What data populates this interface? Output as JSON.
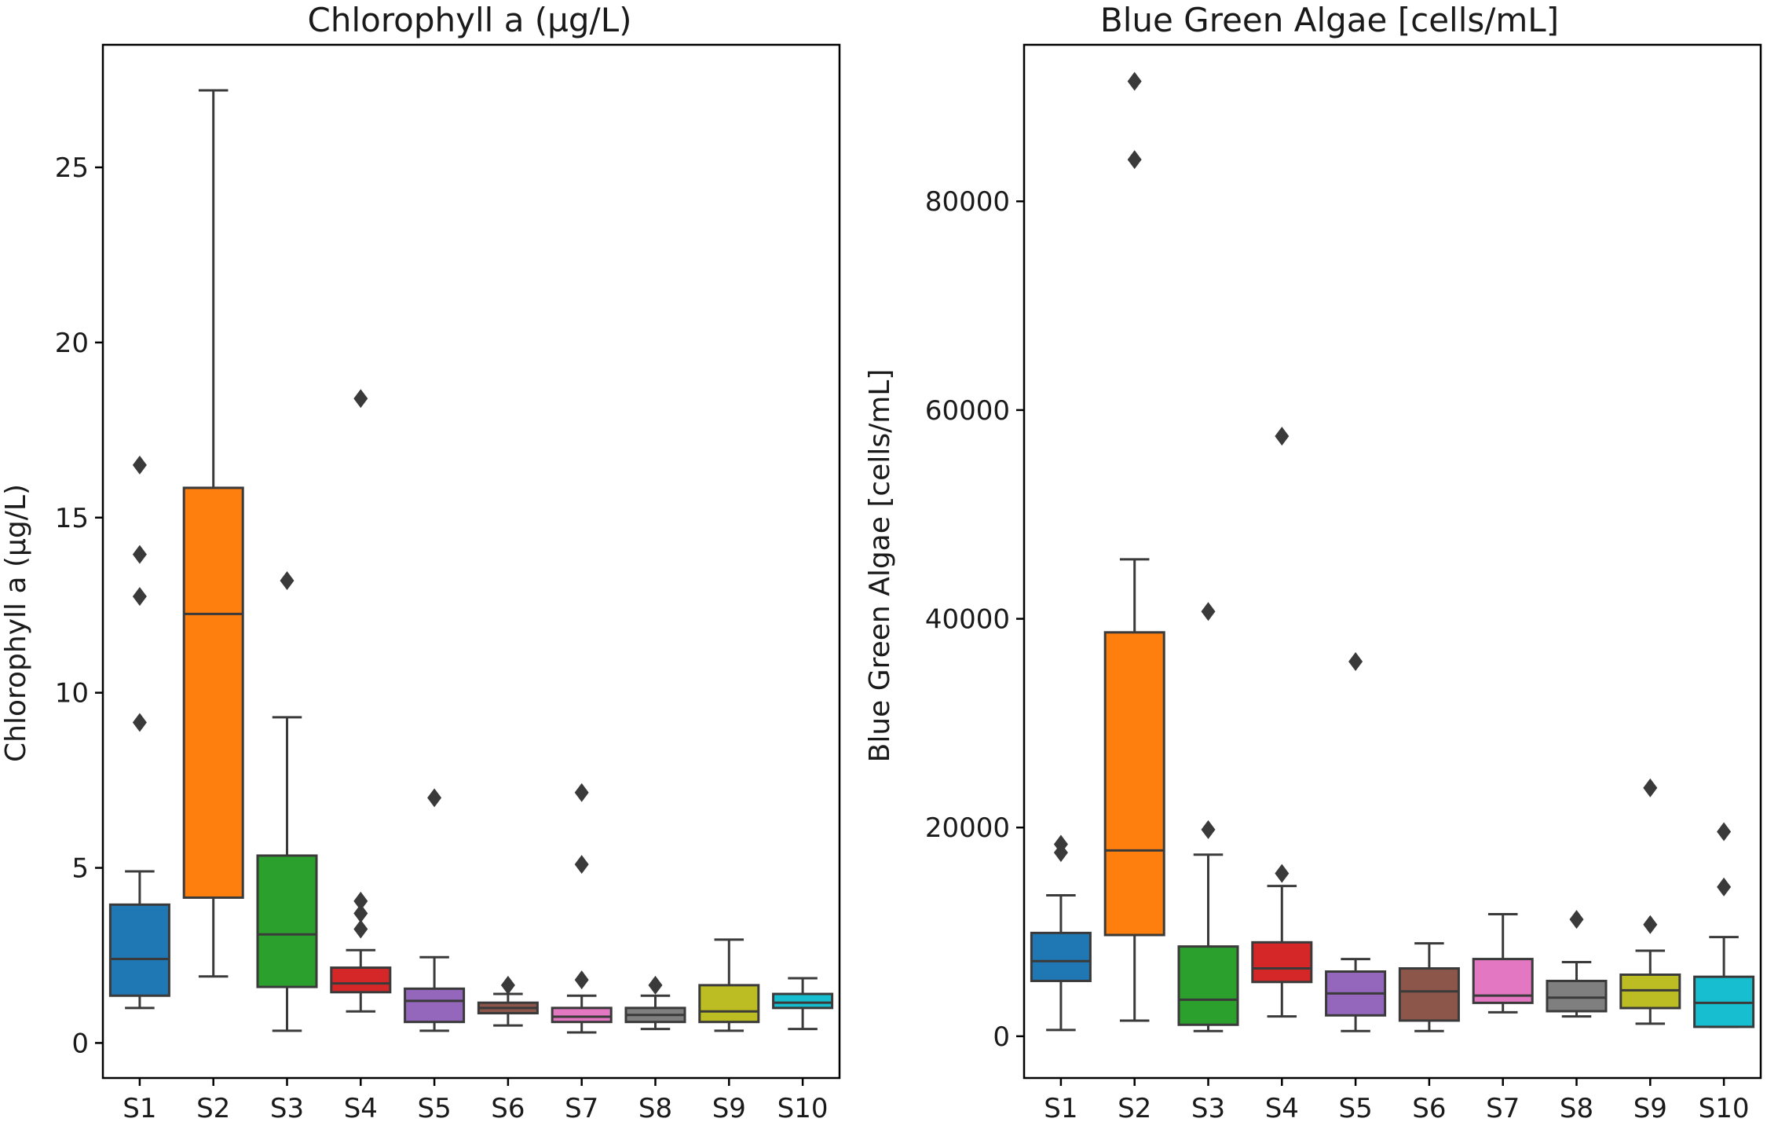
{
  "palette": [
    "#1f77b4",
    "#ff7f0e",
    "#2ca02c",
    "#d62728",
    "#9467bd",
    "#8c564b",
    "#e377c2",
    "#7f7f7f",
    "#bcbd22",
    "#17becf"
  ],
  "chart_data": [
    {
      "type": "box",
      "title": "Chlorophyll a (µg/L)",
      "xlabel": "",
      "ylabel": "Chlorophyll a (µg/L)",
      "ylim": [
        -1.0,
        28.5
      ],
      "yticks": [
        0,
        5,
        10,
        15,
        20,
        25
      ],
      "grid": false,
      "categories": [
        "S1",
        "S2",
        "S3",
        "S4",
        "S5",
        "S6",
        "S7",
        "S8",
        "S9",
        "S10"
      ],
      "boxes": [
        {
          "whislo": 1.0,
          "q1": 1.35,
          "med": 2.4,
          "q3": 3.95,
          "whishi": 4.9,
          "fliers": [
            9.15,
            12.75,
            13.95,
            16.5
          ]
        },
        {
          "whislo": 1.9,
          "q1": 4.15,
          "med": 12.25,
          "q3": 15.85,
          "whishi": 27.2,
          "fliers": []
        },
        {
          "whislo": 0.35,
          "q1": 1.6,
          "med": 3.1,
          "q3": 5.35,
          "whishi": 9.3,
          "fliers": [
            13.2
          ]
        },
        {
          "whislo": 0.9,
          "q1": 1.45,
          "med": 1.7,
          "q3": 2.15,
          "whishi": 2.65,
          "fliers": [
            3.25,
            3.7,
            4.05,
            18.4
          ]
        },
        {
          "whislo": 0.35,
          "q1": 0.6,
          "med": 1.2,
          "q3": 1.55,
          "whishi": 2.45,
          "fliers": [
            7.0
          ]
        },
        {
          "whislo": 0.5,
          "q1": 0.85,
          "med": 1.0,
          "q3": 1.15,
          "whishi": 1.4,
          "fliers": [
            1.65
          ]
        },
        {
          "whislo": 0.3,
          "q1": 0.6,
          "med": 0.75,
          "q3": 1.0,
          "whishi": 1.35,
          "fliers": [
            1.8,
            5.1,
            7.15
          ]
        },
        {
          "whislo": 0.4,
          "q1": 0.6,
          "med": 0.8,
          "q3": 1.0,
          "whishi": 1.35,
          "fliers": [
            1.65
          ]
        },
        {
          "whislo": 0.35,
          "q1": 0.6,
          "med": 0.9,
          "q3": 1.65,
          "whishi": 2.95,
          "fliers": []
        },
        {
          "whislo": 0.4,
          "q1": 1.0,
          "med": 1.15,
          "q3": 1.4,
          "whishi": 1.85,
          "fliers": []
        }
      ]
    },
    {
      "type": "box",
      "title": "Blue Green Algae [cells/mL]",
      "xlabel": "",
      "ylabel": "Blue Green Algae [cells/mL]",
      "ylim": [
        -4000,
        95000
      ],
      "yticks": [
        0,
        20000,
        40000,
        60000,
        80000
      ],
      "grid": false,
      "categories": [
        "S1",
        "S2",
        "S3",
        "S4",
        "S5",
        "S6",
        "S7",
        "S8",
        "S9",
        "S10"
      ],
      "boxes": [
        {
          "whislo": 600,
          "q1": 5300,
          "med": 7200,
          "q3": 9900,
          "whishi": 13500,
          "fliers": [
            17600,
            18400
          ]
        },
        {
          "whislo": 1500,
          "q1": 9700,
          "med": 17800,
          "q3": 38700,
          "whishi": 45700,
          "fliers": [
            84000,
            91500
          ]
        },
        {
          "whislo": 500,
          "q1": 1100,
          "med": 3500,
          "q3": 8600,
          "whishi": 17400,
          "fliers": [
            19800,
            40700
          ]
        },
        {
          "whislo": 1900,
          "q1": 5200,
          "med": 6500,
          "q3": 9000,
          "whishi": 14400,
          "fliers": [
            15600,
            57500
          ]
        },
        {
          "whislo": 500,
          "q1": 2000,
          "med": 4100,
          "q3": 6200,
          "whishi": 7400,
          "fliers": [
            35900
          ]
        },
        {
          "whislo": 500,
          "q1": 1500,
          "med": 4300,
          "q3": 6500,
          "whishi": 8900,
          "fliers": []
        },
        {
          "whislo": 2300,
          "q1": 3200,
          "med": 3900,
          "q3": 7400,
          "whishi": 11700,
          "fliers": []
        },
        {
          "whislo": 1900,
          "q1": 2400,
          "med": 3700,
          "q3": 5300,
          "whishi": 7100,
          "fliers": [
            11200
          ]
        },
        {
          "whislo": 1200,
          "q1": 2700,
          "med": 4400,
          "q3": 5900,
          "whishi": 8200,
          "fliers": [
            10700,
            23800
          ]
        },
        {
          "whislo": 900,
          "q1": 900,
          "med": 3200,
          "q3": 5700,
          "whishi": 9500,
          "fliers": [
            14300,
            19600
          ]
        }
      ]
    }
  ]
}
